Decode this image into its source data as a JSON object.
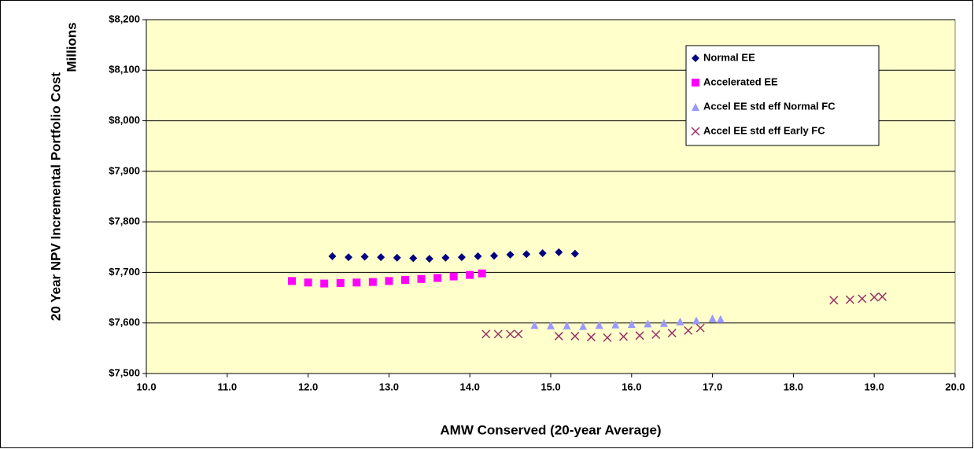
{
  "chart_data": {
    "type": "scatter",
    "x_label": "AMW Conserved (20-year Average)",
    "y_label": "20 Year NPV Incremental Portfolio Cost",
    "y_unit": "Millions",
    "xlim": [
      10,
      20
    ],
    "xticks": [
      {
        "value": 10,
        "label": "10.0"
      },
      {
        "value": 11,
        "label": "11.0"
      },
      {
        "value": 12,
        "label": "12.0"
      },
      {
        "value": 13,
        "label": "13.0"
      },
      {
        "value": 14,
        "label": "14.0"
      },
      {
        "value": 15,
        "label": "15.0"
      },
      {
        "value": 16,
        "label": "16.0"
      },
      {
        "value": 17,
        "label": "17.0"
      },
      {
        "value": 18,
        "label": "18.0"
      },
      {
        "value": 19,
        "label": "19.0"
      },
      {
        "value": 20,
        "label": "20.0"
      }
    ],
    "ylim": [
      7500,
      8200
    ],
    "yticks": [
      {
        "value": 7500,
        "label": "$7,500"
      },
      {
        "value": 7600,
        "label": "$7,600"
      },
      {
        "value": 7700,
        "label": "$7,700"
      },
      {
        "value": 7800,
        "label": "$7,800"
      },
      {
        "value": 7900,
        "label": "$7,900"
      },
      {
        "value": 8000,
        "label": "$8,000"
      },
      {
        "value": 8100,
        "label": "$8,100"
      },
      {
        "value": 8200,
        "label": "$8,200"
      }
    ],
    "grid": true,
    "legend": "upper right",
    "plot_background": "#ffffcc",
    "series": [
      {
        "name": "Normal EE",
        "color": "#000080",
        "marker": "diamond",
        "x": [
          12.3,
          12.5,
          12.7,
          12.9,
          13.1,
          13.3,
          13.5,
          13.7,
          13.9,
          14.1,
          14.3,
          14.5,
          14.7,
          14.9,
          15.1,
          15.3
        ],
        "values": [
          7732,
          7730,
          7731,
          7730,
          7729,
          7728,
          7727,
          7729,
          7730,
          7732,
          7733,
          7735,
          7736,
          7738,
          7740,
          7737
        ]
      },
      {
        "name": "Accelerated EE",
        "color": "#ff00ff",
        "marker": "square",
        "x": [
          11.8,
          12.0,
          12.2,
          12.4,
          12.6,
          12.8,
          13.0,
          13.2,
          13.4,
          13.6,
          13.8,
          14.0,
          14.15
        ],
        "values": [
          7683,
          7680,
          7678,
          7679,
          7680,
          7681,
          7683,
          7685,
          7687,
          7689,
          7692,
          7695,
          7698
        ]
      },
      {
        "name": "Accel EE std eff Normal FC",
        "color": "#9999ff",
        "marker": "triangle",
        "x": [
          14.8,
          15.0,
          15.2,
          15.4,
          15.6,
          15.8,
          16.0,
          16.2,
          16.4,
          16.6,
          16.8,
          17.0,
          17.1
        ],
        "values": [
          7596,
          7595,
          7595,
          7594,
          7596,
          7597,
          7598,
          7599,
          7600,
          7603,
          7605,
          7609,
          7608
        ]
      },
      {
        "name": "Accel EE std eff Early FC",
        "color": "#993366",
        "marker": "x",
        "x": [
          14.2,
          14.35,
          14.5,
          14.6,
          15.1,
          15.3,
          15.5,
          15.7,
          15.9,
          16.1,
          16.3,
          16.5,
          16.7,
          16.85,
          18.5,
          18.7,
          18.85,
          19.0,
          19.1
        ],
        "values": [
          7578,
          7578,
          7578,
          7578,
          7574,
          7574,
          7572,
          7571,
          7573,
          7575,
          7577,
          7580,
          7585,
          7590,
          7645,
          7646,
          7648,
          7651,
          7652
        ]
      }
    ]
  }
}
